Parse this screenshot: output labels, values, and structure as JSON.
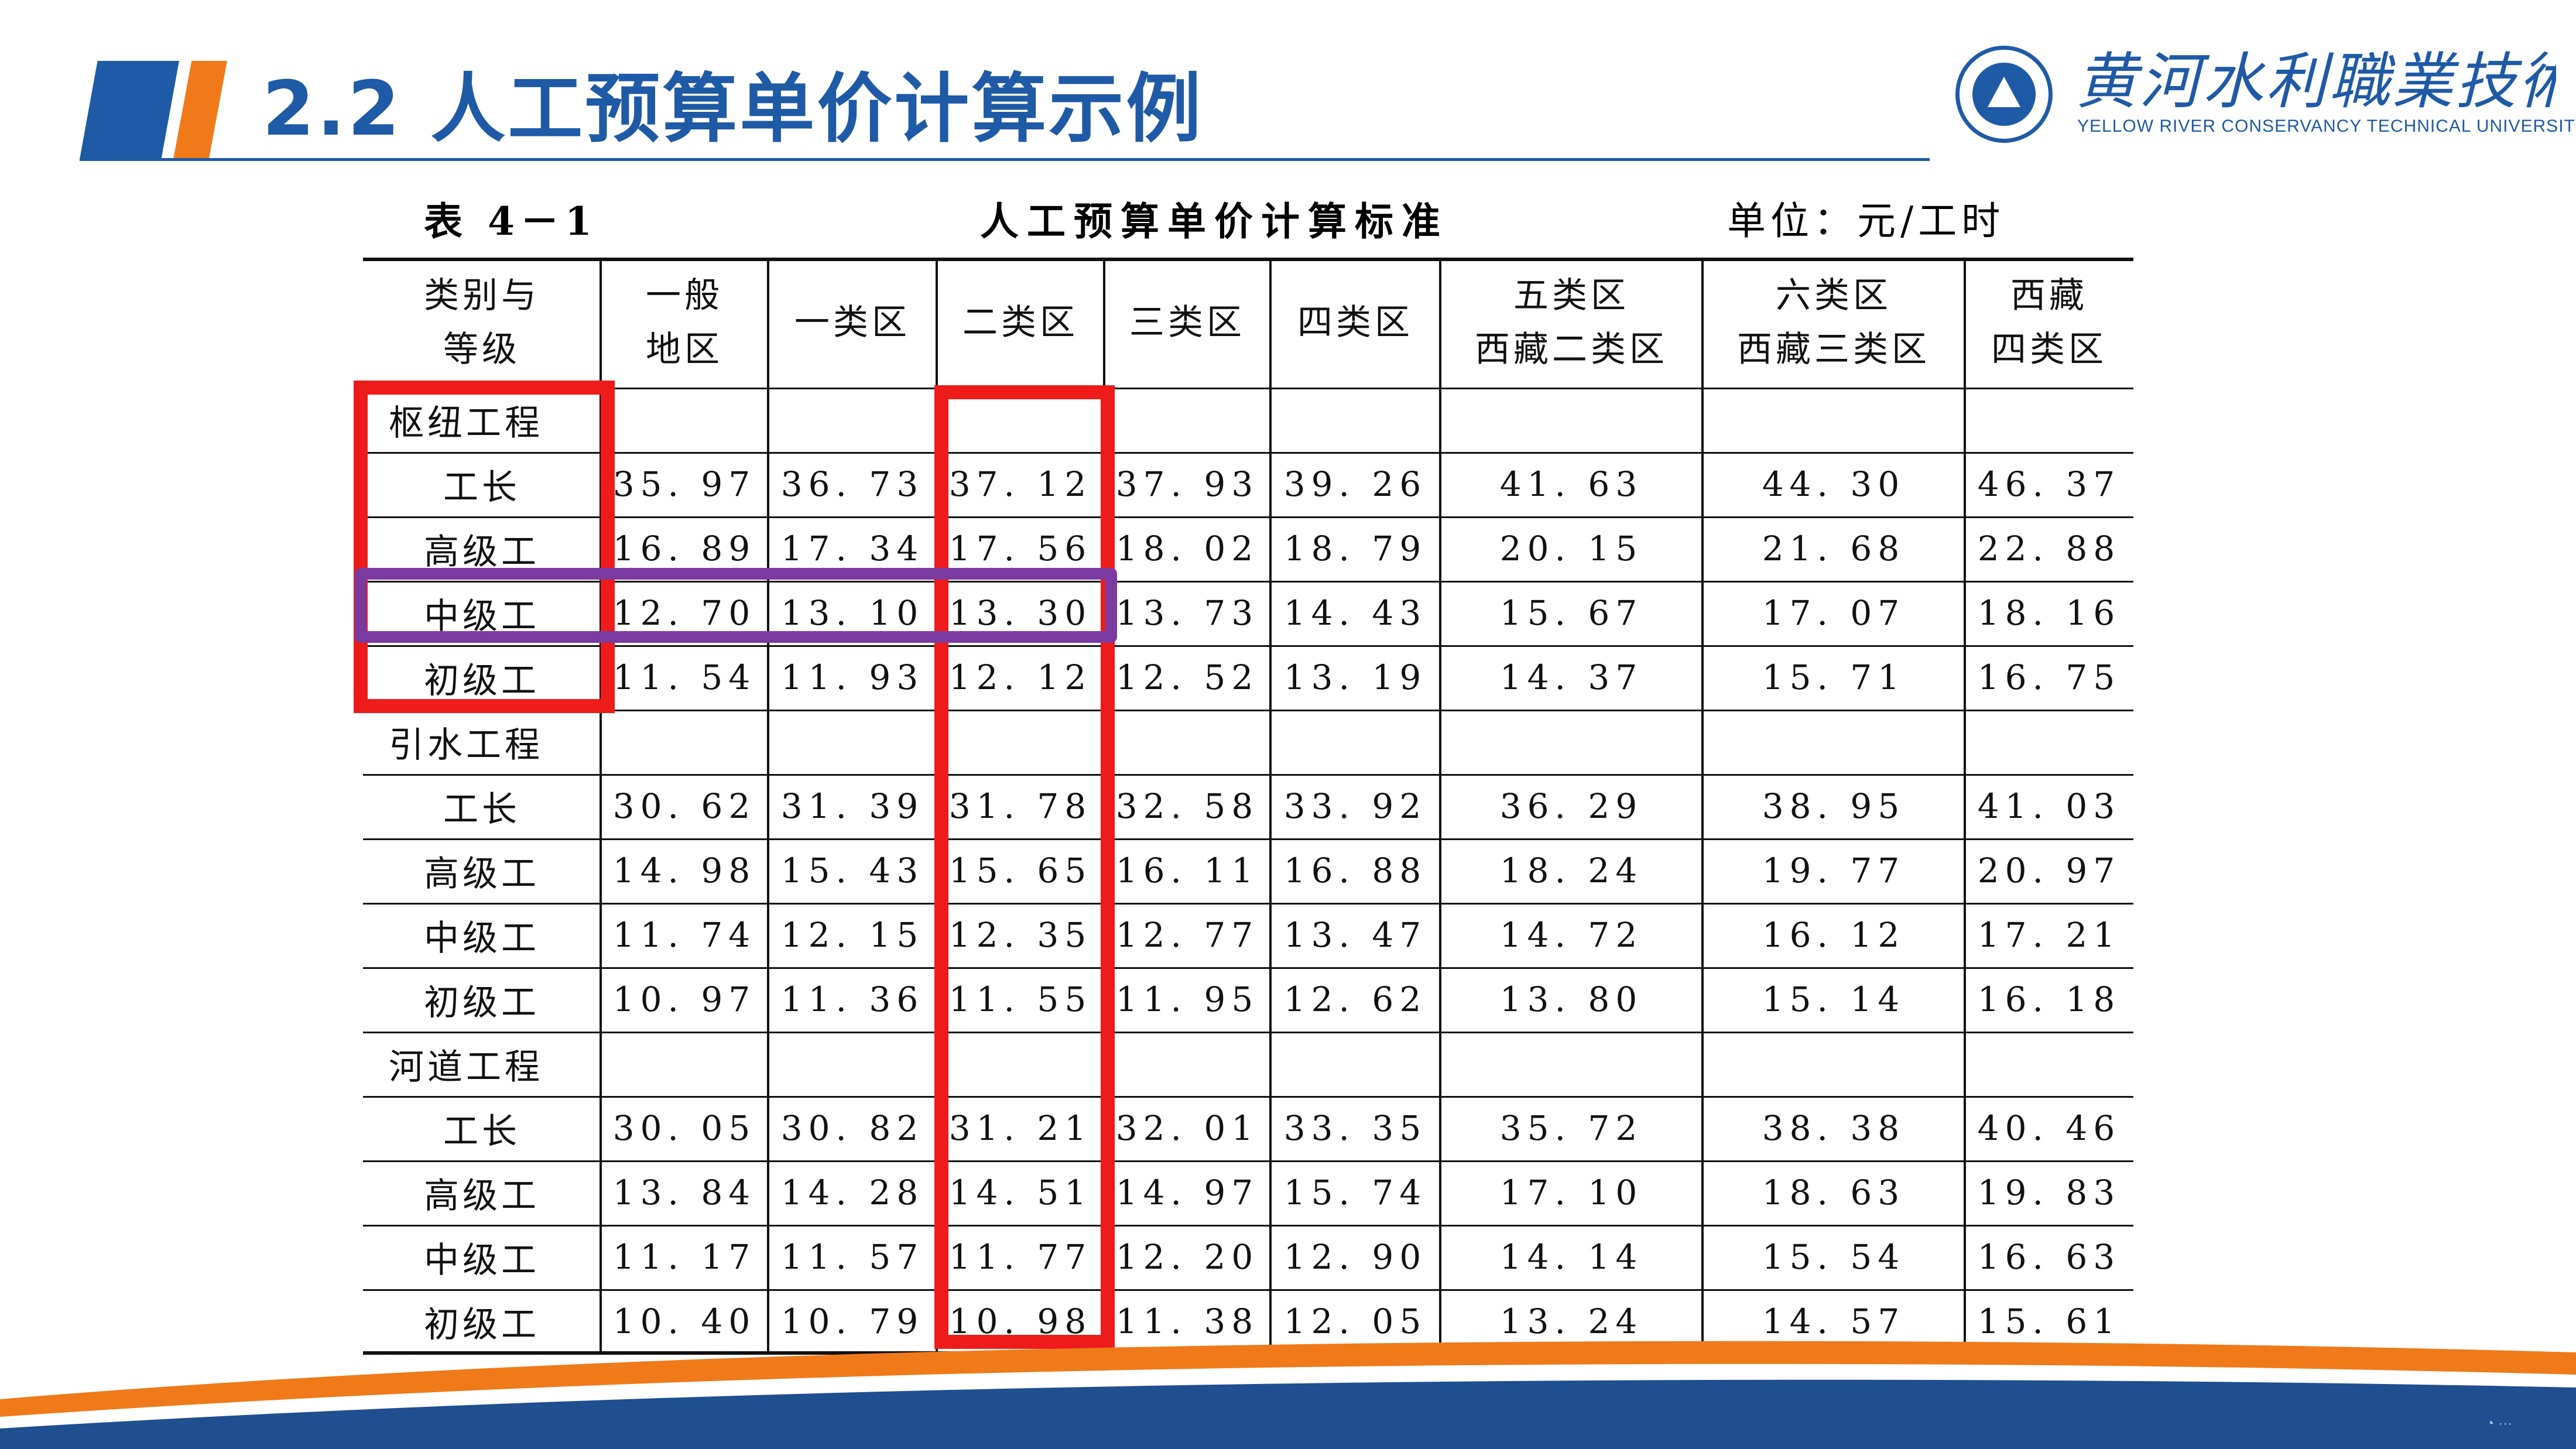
{
  "header": {
    "title": "2.2  人工预算单价计算示例",
    "logo_cn": "黄河水利職業技術大學",
    "logo_en": "YELLOW RIVER CONSERVANCY TECHNICAL UNIVERSITY",
    "accent": "#1f5aa6",
    "accent2": "#f07a1a"
  },
  "table": {
    "caption_number": "表 4－1",
    "caption_title": "人工预算单价计算标准",
    "caption_unit": "单位：元/工时",
    "headers": [
      [
        "类别与",
        "等级"
      ],
      [
        "一般",
        "地区"
      ],
      [
        "一类区"
      ],
      [
        "二类区"
      ],
      [
        "三类区"
      ],
      [
        "四类区"
      ],
      [
        "五类区",
        "西藏二类区"
      ],
      [
        "六类区",
        "西藏三类区"
      ],
      [
        "西藏",
        "四类区"
      ]
    ],
    "sections": [
      {
        "name": "枢纽工程",
        "rows": [
          {
            "label": "工长",
            "values": [
              "35. 97",
              "36. 73",
              "37. 12",
              "37. 93",
              "39. 26",
              "41. 63",
              "44. 30",
              "46. 37"
            ]
          },
          {
            "label": "高级工",
            "values": [
              "16. 89",
              "17. 34",
              "17. 56",
              "18. 02",
              "18. 79",
              "20. 15",
              "21. 68",
              "22. 88"
            ]
          },
          {
            "label": "中级工",
            "values": [
              "12. 70",
              "13. 10",
              "13. 30",
              "13. 73",
              "14. 43",
              "15. 67",
              "17. 07",
              "18. 16"
            ]
          },
          {
            "label": "初级工",
            "values": [
              "11. 54",
              "11. 93",
              "12. 12",
              "12. 52",
              "13. 19",
              "14. 37",
              "15. 71",
              "16. 75"
            ]
          }
        ]
      },
      {
        "name": "引水工程",
        "rows": [
          {
            "label": "工长",
            "values": [
              "30. 62",
              "31. 39",
              "31. 78",
              "32. 58",
              "33. 92",
              "36. 29",
              "38. 95",
              "41. 03"
            ]
          },
          {
            "label": "高级工",
            "values": [
              "14. 98",
              "15. 43",
              "15. 65",
              "16. 11",
              "16. 88",
              "18. 24",
              "19. 77",
              "20. 97"
            ]
          },
          {
            "label": "中级工",
            "values": [
              "11. 74",
              "12. 15",
              "12. 35",
              "12. 77",
              "13. 47",
              "14. 72",
              "16. 12",
              "17. 21"
            ]
          },
          {
            "label": "初级工",
            "values": [
              "10. 97",
              "11. 36",
              "11. 55",
              "11. 95",
              "12. 62",
              "13. 80",
              "15. 14",
              "16. 18"
            ]
          }
        ]
      },
      {
        "name": "河道工程",
        "rows": [
          {
            "label": "工长",
            "values": [
              "30. 05",
              "30. 82",
              "31. 21",
              "32. 01",
              "33. 35",
              "35. 72",
              "38. 38",
              "40. 46"
            ]
          },
          {
            "label": "高级工",
            "values": [
              "13. 84",
              "14. 28",
              "14. 51",
              "14. 97",
              "15. 74",
              "17. 10",
              "18. 63",
              "19. 83"
            ]
          },
          {
            "label": "中级工",
            "values": [
              "11. 17",
              "11. 57",
              "11. 77",
              "12. 20",
              "12. 90",
              "14. 14",
              "15. 54",
              "16. 63"
            ]
          },
          {
            "label": "初级工",
            "values": [
              "10. 40",
              "10. 79",
              "10. 98",
              "11. 38",
              "12. 05",
              "13. 24",
              "14. 57",
              "15. 61"
            ]
          }
        ]
      }
    ],
    "highlight_colors": {
      "red": "#ee1b1b",
      "purple": "#7b3aa0"
    }
  }
}
